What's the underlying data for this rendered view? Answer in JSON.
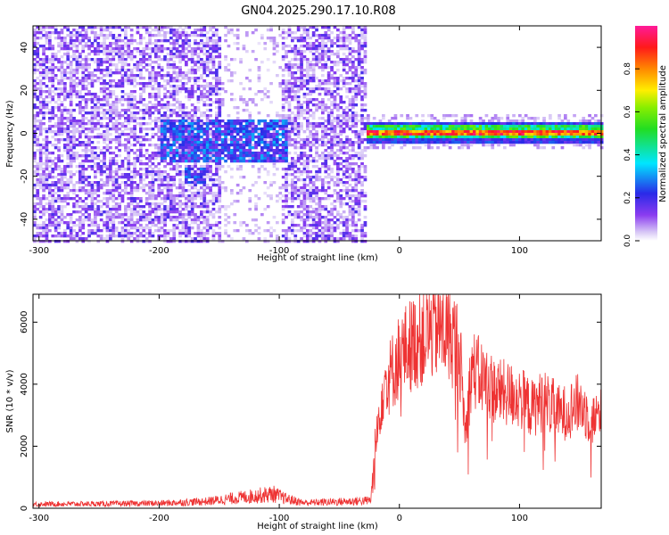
{
  "title": "GN04.2025.290.17.10.R08",
  "chart_data": [
    {
      "type": "heatmap",
      "xlabel": "Height of straight line (km)",
      "ylabel": "Frequency (Hz)",
      "xlim": [
        -305,
        168
      ],
      "ylim": [
        -50,
        50
      ],
      "xticks": [
        -300,
        -200,
        -100,
        0,
        100
      ],
      "yticks": [
        -40,
        -20,
        0,
        20,
        40
      ],
      "colorbar": {
        "label": "Normalized spectral amplitude",
        "range": [
          0,
          1
        ],
        "ticks": [
          "0.0",
          "0.2",
          "0.4",
          "0.6",
          "0.8"
        ],
        "tick_values": [
          0,
          0.2,
          0.4,
          0.6,
          0.8
        ],
        "colormap": "rainbow (white-violet-blue-cyan-green-yellow-red-magenta)"
      },
      "regions": [
        {
          "x_range": [
            -305,
            -150
          ],
          "description": "broadband noise",
          "amplitude": 0.15
        },
        {
          "x_range": [
            -150,
            -100
          ],
          "description": "sparse noise",
          "amplitude": 0.05
        },
        {
          "x_range": [
            -100,
            -28
          ],
          "description": "broadband noise",
          "amplitude": 0.15
        },
        {
          "x_range": [
            -28,
            168
          ],
          "description": "narrow band near 0 Hz",
          "amplitude": 0.9
        }
      ]
    },
    {
      "type": "line",
      "xlabel": "Height of straight line (km)",
      "ylabel": "SNR (10 * v/v)",
      "xlim": [
        -305,
        168
      ],
      "ylim": [
        0,
        6900
      ],
      "xticks": [
        -300,
        -200,
        -100,
        0,
        100
      ],
      "yticks": [
        0,
        2000,
        4000,
        6000
      ],
      "series": [
        {
          "color": "#ee3333",
          "x": [
            -305,
            -250,
            -200,
            -160,
            -140,
            -120,
            -105,
            -95,
            -80,
            -40,
            -24,
            -20,
            -17,
            -13,
            -8,
            0,
            10,
            20,
            30,
            40,
            50,
            55,
            60,
            80,
            100,
            110,
            120,
            135,
            150,
            160,
            168
          ],
          "y": [
            150,
            160,
            180,
            250,
            350,
            450,
            520,
            350,
            200,
            250,
            280,
            1900,
            3200,
            4300,
            4500,
            5200,
            5600,
            5900,
            6200,
            6000,
            5500,
            2500,
            4800,
            4000,
            3800,
            3400,
            3700,
            3200,
            3600,
            3000,
            3200
          ]
        }
      ]
    }
  ]
}
